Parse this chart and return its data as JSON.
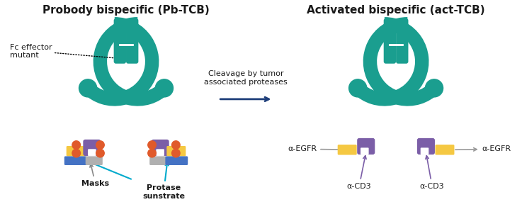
{
  "teal_dark": "#1a9e8f",
  "teal_light": "#3dbfb0",
  "teal_shadow": "#0d7a6e",
  "yellow": "#f5c842",
  "purple": "#7b5ea7",
  "orange": "#e05a2b",
  "blue_bar": "#4472c4",
  "gray_bar": "#b0b0b0",
  "cyan_arrow": "#00aacc",
  "navy_arrow": "#1f3f7a",
  "purple_arrow": "#7b5ea7",
  "bg": "#ffffff",
  "text_dark": "#1a1a1a",
  "title_left": "Probody bispecific (Pb-TCB)",
  "title_right": "Activated bispecific (act-TCB)",
  "label_fc": "Fc effector\nmutant",
  "label_masks": "Masks",
  "label_protase": "Protase\nsunstrate",
  "label_cleavage": "Cleavage by tumor\nassociated proteases",
  "label_egfr_left": "α-EGFR",
  "label_egfr_right": "α-EGFR",
  "label_cd3_left": "α-CD3",
  "label_cd3_right": "α-CD3"
}
